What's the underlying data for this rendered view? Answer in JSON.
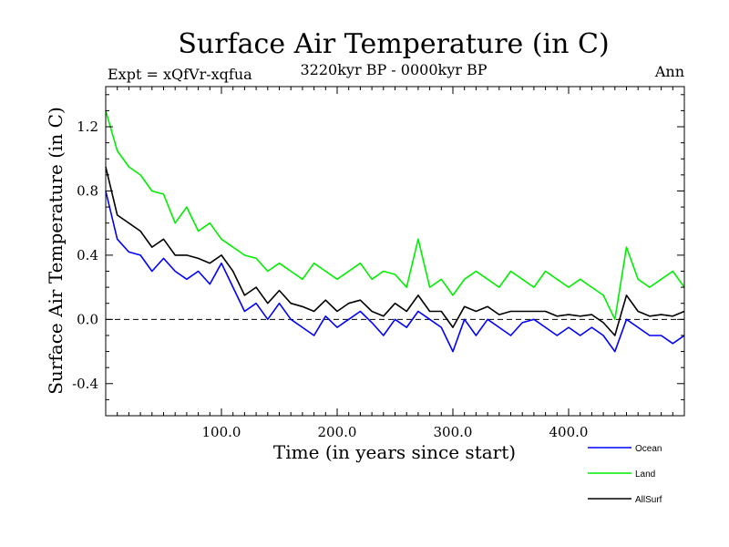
{
  "chart_data": {
    "type": "line",
    "title": "Surface Air Temperature (in C)",
    "subtitle": "3220kyr BP - 0000kyr BP",
    "left_label": "Expt = xQfVr-xqfua",
    "right_label": "Ann",
    "xlabel": "Time (in years since start)",
    "ylabel": "Surface Air Temperature (in C)",
    "xlim": [
      0,
      500
    ],
    "ylim": [
      -0.6,
      1.45
    ],
    "xticks": [
      100,
      200,
      300,
      400
    ],
    "xtick_labels": [
      "100.0",
      "200.0",
      "300.0",
      "400.0"
    ],
    "yticks": [
      -0.4,
      0.0,
      0.4,
      0.8,
      1.2
    ],
    "ytick_labels": [
      "-0.4",
      "0.0",
      "0.4",
      "0.8",
      "1.2"
    ],
    "reference_line": 0.0,
    "grid": false,
    "legend_position": "bottom-right",
    "series": [
      {
        "name": "Ocean",
        "color": "#0000ff",
        "x": [
          0,
          10,
          20,
          30,
          40,
          50,
          60,
          70,
          80,
          90,
          100,
          110,
          120,
          130,
          140,
          150,
          160,
          170,
          180,
          190,
          200,
          210,
          220,
          230,
          240,
          250,
          260,
          270,
          280,
          290,
          300,
          310,
          320,
          330,
          340,
          350,
          360,
          370,
          380,
          390,
          400,
          410,
          420,
          430,
          440,
          450,
          460,
          470,
          480,
          490,
          500
        ],
        "values": [
          0.8,
          0.5,
          0.42,
          0.4,
          0.3,
          0.38,
          0.3,
          0.25,
          0.3,
          0.22,
          0.35,
          0.2,
          0.05,
          0.1,
          0.0,
          0.1,
          0.0,
          -0.05,
          -0.1,
          0.02,
          -0.05,
          0.0,
          0.05,
          -0.02,
          -0.1,
          0.0,
          -0.05,
          0.05,
          0.0,
          -0.05,
          -0.2,
          0.0,
          -0.1,
          0.0,
          -0.05,
          -0.1,
          -0.02,
          0.0,
          -0.05,
          -0.1,
          -0.05,
          -0.1,
          -0.05,
          -0.1,
          -0.2,
          0.0,
          -0.05,
          -0.1,
          -0.1,
          -0.15,
          -0.1
        ]
      },
      {
        "name": "Land",
        "color": "#00ee00",
        "x": [
          0,
          10,
          20,
          30,
          40,
          50,
          60,
          70,
          80,
          90,
          100,
          110,
          120,
          130,
          140,
          150,
          160,
          170,
          180,
          190,
          200,
          210,
          220,
          230,
          240,
          250,
          260,
          270,
          280,
          290,
          300,
          310,
          320,
          330,
          340,
          350,
          360,
          370,
          380,
          390,
          400,
          410,
          420,
          430,
          440,
          450,
          460,
          470,
          480,
          490,
          500
        ],
        "values": [
          1.3,
          1.05,
          0.95,
          0.9,
          0.8,
          0.78,
          0.6,
          0.7,
          0.55,
          0.6,
          0.5,
          0.45,
          0.4,
          0.38,
          0.3,
          0.35,
          0.3,
          0.25,
          0.35,
          0.3,
          0.25,
          0.3,
          0.35,
          0.25,
          0.3,
          0.28,
          0.2,
          0.5,
          0.2,
          0.25,
          0.15,
          0.25,
          0.3,
          0.25,
          0.2,
          0.3,
          0.25,
          0.2,
          0.3,
          0.25,
          0.2,
          0.25,
          0.2,
          0.15,
          0.0,
          0.45,
          0.25,
          0.2,
          0.25,
          0.3,
          0.2
        ]
      },
      {
        "name": "AllSurf",
        "color": "#000000",
        "x": [
          0,
          10,
          20,
          30,
          40,
          50,
          60,
          70,
          80,
          90,
          100,
          110,
          120,
          130,
          140,
          150,
          160,
          170,
          180,
          190,
          200,
          210,
          220,
          230,
          240,
          250,
          260,
          270,
          280,
          290,
          300,
          310,
          320,
          330,
          340,
          350,
          360,
          370,
          380,
          390,
          400,
          410,
          420,
          430,
          440,
          450,
          460,
          470,
          480,
          490,
          500
        ],
        "values": [
          0.95,
          0.65,
          0.6,
          0.55,
          0.45,
          0.5,
          0.4,
          0.4,
          0.38,
          0.35,
          0.4,
          0.3,
          0.15,
          0.2,
          0.1,
          0.18,
          0.1,
          0.08,
          0.05,
          0.12,
          0.05,
          0.1,
          0.12,
          0.05,
          0.02,
          0.1,
          0.05,
          0.15,
          0.05,
          0.05,
          -0.05,
          0.08,
          0.05,
          0.08,
          0.03,
          0.05,
          0.05,
          0.05,
          0.05,
          0.02,
          0.03,
          0.02,
          0.03,
          -0.02,
          -0.1,
          0.15,
          0.05,
          0.02,
          0.03,
          0.02,
          0.05
        ]
      }
    ]
  }
}
